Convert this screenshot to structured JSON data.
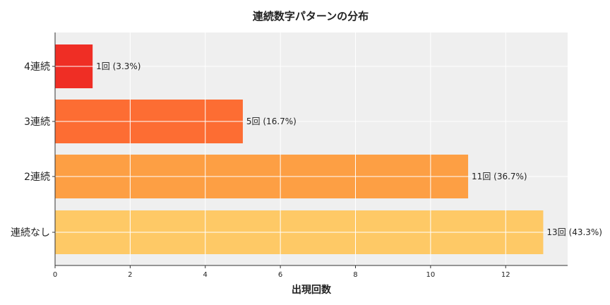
{
  "chart_data": {
    "type": "bar",
    "orientation": "horizontal",
    "title": "連続数字パターンの分布",
    "xlabel": "出現回数",
    "ylabel": "",
    "categories": [
      "連続なし",
      "2連続",
      "3連続",
      "4連続"
    ],
    "values": [
      13,
      11,
      5,
      1
    ],
    "data_labels": [
      "13回 (43.3%)",
      "11回 (36.7%)",
      "5回 (16.7%)",
      "1回 (3.3%)"
    ],
    "colors": [
      "#fec966",
      "#fd9f44",
      "#fd6d33",
      "#ef2e25"
    ],
    "xlim": [
      0,
      13.65
    ],
    "xticks": [
      0,
      2,
      4,
      6,
      8,
      10,
      12
    ],
    "grid": true,
    "background": "#efefef"
  }
}
